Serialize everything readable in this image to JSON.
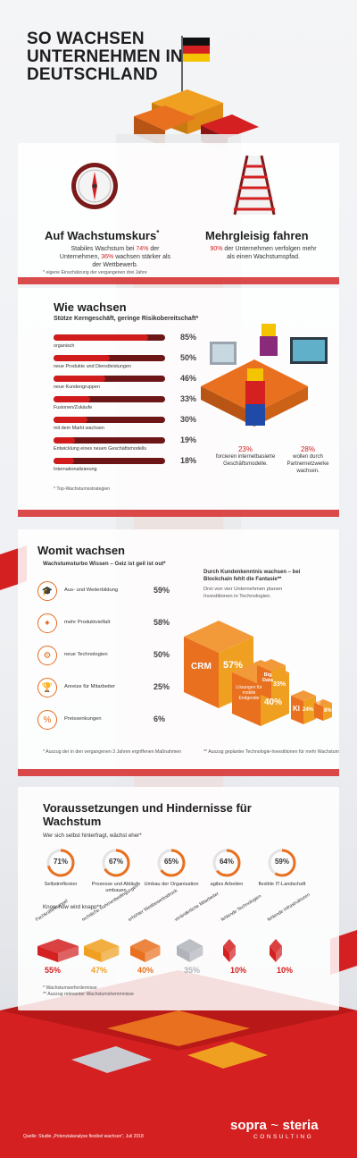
{
  "title": "SO WACHSEN UNTERNEHMEN IN DEUTSCHLAND",
  "section1": {
    "left_heading": "Auf Wachstumskurs",
    "left_heading_mark": "*",
    "left_text_pre": "Stabiles Wachstum bei",
    "left_pct1": "74%",
    "left_text_mid": "der Unternehmen,",
    "left_pct2": "36%",
    "left_text_post": "wachsen stärker als der Wettbewerb.",
    "footnote": "* eigene Einschätzung der vergangenen drei Jahre",
    "right_heading": "Mehrgleisig fahren",
    "right_pct": "90%",
    "right_text": "der Unternehmen verfolgen mehr als einen Wachstumspfad."
  },
  "section2": {
    "heading": "Wie wachsen",
    "subheading": "Stütze Kerngeschäft, geringe Risikobereitschaft*",
    "bars": [
      {
        "label": "organisch",
        "pct": "85%",
        "value": 85
      },
      {
        "label": "neue Produkte und Dienstleistungen",
        "pct": "50%",
        "value": 50
      },
      {
        "label": "neue Kundengruppen",
        "pct": "46%",
        "value": 46
      },
      {
        "label": "Fusionen/Zukäufe",
        "pct": "33%",
        "value": 33
      },
      {
        "label": "mit dem Markt wachsen",
        "pct": "30%",
        "value": 30
      },
      {
        "label": "Entwicklung eines neuen Geschäftsmodells",
        "pct": "19%",
        "value": 19
      },
      {
        "label": "Internationalisierung",
        "pct": "18%",
        "value": 18
      }
    ],
    "footnote": "* Top-Wachstumsstrategien",
    "stat1_pct": "23%",
    "stat1_text": "forcieren internetbasierte Geschäftsmodelle.",
    "stat2_pct": "28%",
    "stat2_text": "wollen durch Partnernetzwerke wachsen."
  },
  "section3": {
    "heading": "Womit wachsen",
    "subheading": "Wachstumsturbo Wissen – Geiz ist geil ist out*",
    "levers": [
      {
        "icon": "graduation-cap-icon",
        "glyph": "🎓",
        "label": "Aus- und Weiterbildung",
        "pct": "59%"
      },
      {
        "icon": "sparkle-icon",
        "glyph": "✦",
        "label": "mehr Produktvielfalt",
        "pct": "58%"
      },
      {
        "icon": "gear-icon",
        "glyph": "⚙",
        "label": "neue Technologien",
        "pct": "50%"
      },
      {
        "icon": "trophy-icon",
        "glyph": "🏆",
        "label": "Anreize für Mitarbeiter",
        "pct": "25%"
      },
      {
        "icon": "price-tag-icon",
        "glyph": "%",
        "label": "Preissenkungen",
        "pct": "6%"
      }
    ],
    "right_heading": "Durch Kundenkenntnis wachsen – bei Blockchain fehlt die Fantasie**",
    "right_text": "Drei von vier Unternehmen planen Investitionen in Technologien.",
    "tech": [
      {
        "label": "CRM",
        "pct": "57%"
      },
      {
        "label": "Lösungen für mobile Endgeräte",
        "pct": "40%"
      },
      {
        "label": "Big Data",
        "pct": "33%"
      },
      {
        "label": "KI",
        "pct": "24%"
      },
      {
        "label": "Blockchain",
        "pct": "8%"
      }
    ],
    "footnote_left": "* Auszug der in den vergangenen 3 Jahren ergriffenen Maßnahmen",
    "footnote_right": "** Auszug geplanter Technologie-Investitionen für mehr Wachstum"
  },
  "section4": {
    "heading": "Voraussetzungen und Hindernisse für Wachstum",
    "subheading": "Wer sich selbst hinterfragt, wächst eher*",
    "rings": [
      {
        "label": "Selbstreflexion",
        "pct": "71%",
        "value": 71
      },
      {
        "label": "Prozesse und Abläufe umbauen",
        "pct": "67%",
        "value": 67
      },
      {
        "label": "Umbau der Organisation",
        "pct": "65%",
        "value": 65
      },
      {
        "label": "agiles Arbeiten",
        "pct": "64%",
        "value": 64
      },
      {
        "label": "flexible IT-Landschaft",
        "pct": "59%",
        "value": 59
      }
    ],
    "knowhow_heading": "Know-how wird knapp**",
    "obstacles": [
      {
        "label": "Fachkräftemangel",
        "pct": "55%",
        "color": "#d42020"
      },
      {
        "label": "rechtliche Rahmenbedingungen",
        "pct": "47%",
        "color": "#f0a020"
      },
      {
        "label": "erhöhter Wettbewerbsdruck",
        "pct": "40%",
        "color": "#e8701e"
      },
      {
        "label": "veränderliche Mitarbeiter",
        "pct": "35%",
        "color": "#b0b4ba"
      },
      {
        "label": "fehlende Technologien",
        "pct": "10%",
        "color": "#d42020"
      },
      {
        "label": "fehlende Infrastrukturen",
        "pct": "10%",
        "color": "#d42020"
      }
    ],
    "footnote1": "* Wachstumserfordernisse",
    "footnote2": "** Auszug relevanter Wachstumshemmnisse"
  },
  "footer": {
    "source": "Quelle: Studie „Potenzialanalyse flexibel wachsen“, Juli 2018",
    "brand_left": "sopra",
    "brand_right": "steria",
    "brand_sub": "CONSULTING"
  },
  "colors": {
    "red": "#d42020",
    "dark_red": "#6d1618",
    "orange": "#e8701e",
    "yellow": "#f0a020"
  }
}
